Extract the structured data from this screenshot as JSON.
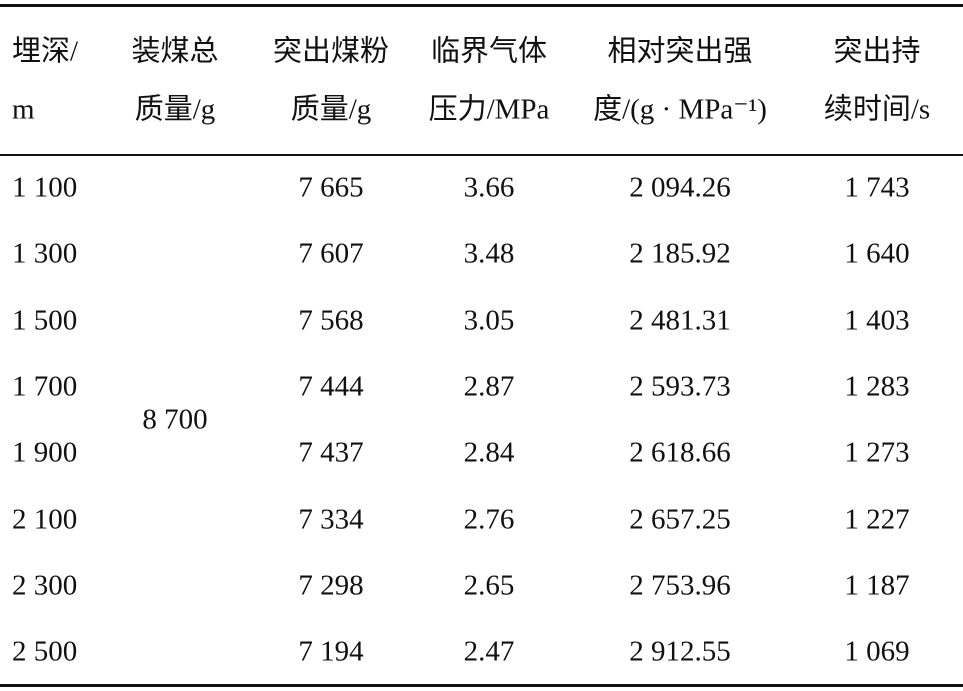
{
  "table": {
    "header": [
      [
        "埋深/",
        "m"
      ],
      [
        "装煤总",
        "质量/g"
      ],
      [
        "突出煤粉",
        "质量/g"
      ],
      [
        "临界气体",
        "压力/MPa"
      ],
      [
        "相对突出强",
        "度/(g · MPa⁻¹)"
      ],
      [
        "突出持",
        "续时间/s"
      ]
    ],
    "total_mass": "8 700",
    "rows": [
      [
        "1 100",
        "7 665",
        "3.66",
        "2 094.26",
        "1 743"
      ],
      [
        "1 300",
        "7 607",
        "3.48",
        "2 185.92",
        "1 640"
      ],
      [
        "1 500",
        "7 568",
        "3.05",
        "2 481.31",
        "1 403"
      ],
      [
        "1 700",
        "7 444",
        "2.87",
        "2 593.73",
        "1 283"
      ],
      [
        "1 900",
        "7 437",
        "2.84",
        "2 618.66",
        "1 273"
      ],
      [
        "2 100",
        "7 334",
        "2.76",
        "2 657.25",
        "1 227"
      ],
      [
        "2 300",
        "7 298",
        "2.65",
        "2 753.96",
        "1 187"
      ],
      [
        "2 500",
        "7 194",
        "2.47",
        "2 912.55",
        "1 069"
      ]
    ]
  }
}
